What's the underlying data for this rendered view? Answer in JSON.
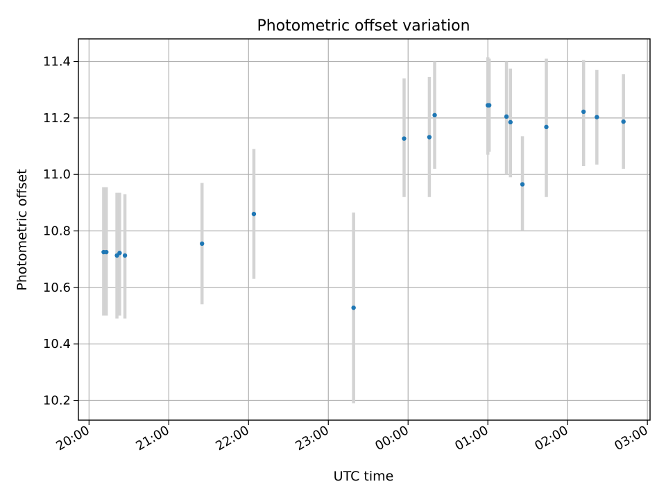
{
  "chart_data": {
    "type": "scatter",
    "title": "Photometric offset variation",
    "xlabel": "UTC time",
    "ylabel": "Photometric offset",
    "xlim": [
      "19:52",
      "03:02"
    ],
    "ylim": [
      10.13,
      11.48
    ],
    "x_ticks": [
      "20:00",
      "21:00",
      "22:00",
      "23:00",
      "00:00",
      "01:00",
      "02:00",
      "03:00"
    ],
    "y_ticks": [
      "10.2",
      "10.4",
      "10.6",
      "10.8",
      "11.0",
      "11.2",
      "11.4"
    ],
    "grid": true,
    "colors": {
      "marker": "#1f77b4",
      "errorbar": "#d3d3d3",
      "grid": "#b0b0b0"
    },
    "points": [
      {
        "time": "20:11",
        "y": 10.725,
        "ylo": 10.5,
        "yhi": 10.955
      },
      {
        "time": "20:13",
        "y": 10.725,
        "ylo": 10.5,
        "yhi": 10.955
      },
      {
        "time": "20:21",
        "y": 10.713,
        "ylo": 10.49,
        "yhi": 10.935
      },
      {
        "time": "20:23",
        "y": 10.722,
        "ylo": 10.5,
        "yhi": 10.935
      },
      {
        "time": "20:27",
        "y": 10.713,
        "ylo": 10.49,
        "yhi": 10.93
      },
      {
        "time": "21:25",
        "y": 10.755,
        "ylo": 10.54,
        "yhi": 10.97
      },
      {
        "time": "22:04",
        "y": 10.86,
        "ylo": 10.63,
        "yhi": 11.09
      },
      {
        "time": "23:19",
        "y": 10.528,
        "ylo": 10.19,
        "yhi": 10.865
      },
      {
        "time": "23:57",
        "y": 11.127,
        "ylo": 10.92,
        "yhi": 11.34
      },
      {
        "time": "00:16",
        "y": 11.132,
        "ylo": 10.92,
        "yhi": 11.345
      },
      {
        "time": "00:20",
        "y": 11.21,
        "ylo": 11.02,
        "yhi": 11.4
      },
      {
        "time": "01:00",
        "y": 11.245,
        "ylo": 11.07,
        "yhi": 11.415
      },
      {
        "time": "01:01",
        "y": 11.245,
        "ylo": 11.08,
        "yhi": 11.41
      },
      {
        "time": "01:14",
        "y": 11.205,
        "ylo": 11.0,
        "yhi": 11.4
      },
      {
        "time": "01:17",
        "y": 11.185,
        "ylo": 10.99,
        "yhi": 11.375
      },
      {
        "time": "01:26",
        "y": 10.965,
        "ylo": 10.8,
        "yhi": 11.135
      },
      {
        "time": "01:44",
        "y": 11.168,
        "ylo": 10.92,
        "yhi": 11.41
      },
      {
        "time": "02:12",
        "y": 11.222,
        "ylo": 11.03,
        "yhi": 11.405
      },
      {
        "time": "02:22",
        "y": 11.203,
        "ylo": 11.035,
        "yhi": 11.37
      },
      {
        "time": "02:42",
        "y": 11.187,
        "ylo": 11.02,
        "yhi": 11.355
      }
    ]
  }
}
